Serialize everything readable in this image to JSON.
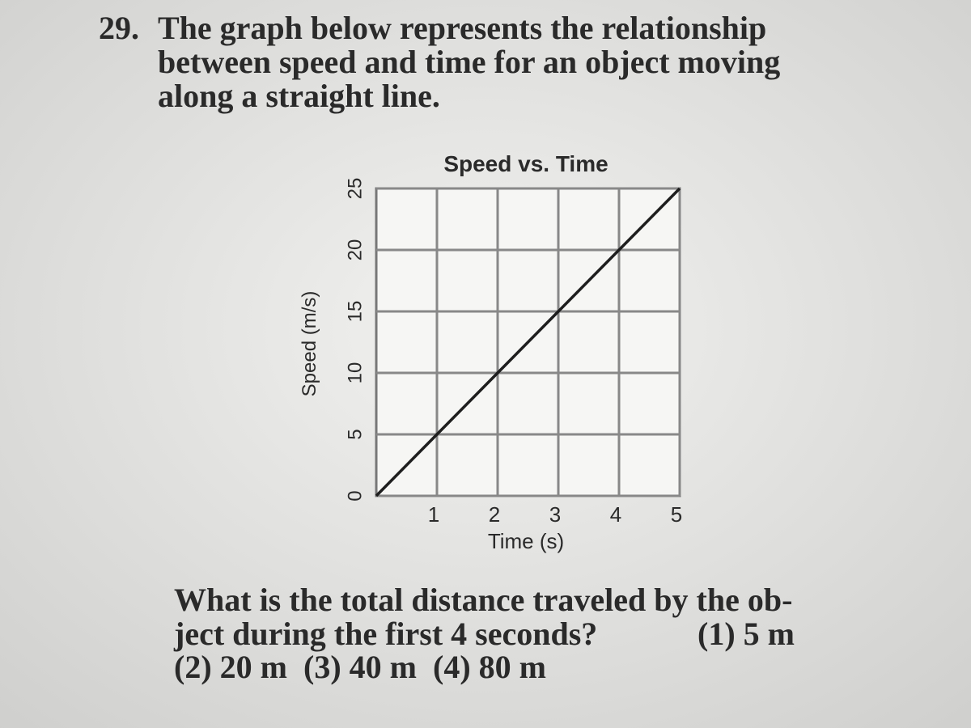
{
  "question": {
    "number": "29.",
    "lines": [
      "The graph below represents the relationship",
      "between speed and time for an object moving",
      "along a straight line."
    ]
  },
  "chart_data": {
    "type": "line",
    "title": "Speed vs. Time",
    "x_label": "Time (s)",
    "y_label": "Speed (m/s)",
    "x": [
      0,
      1,
      2,
      3,
      4,
      5
    ],
    "values": [
      0,
      5,
      10,
      15,
      20,
      25
    ],
    "color": "#1e1e1e",
    "xlim": [
      0,
      5
    ],
    "ylim": [
      0,
      25
    ],
    "xticks": [
      1,
      2,
      3,
      4,
      5
    ],
    "yticks": [
      0,
      5,
      10,
      15,
      20,
      25
    ],
    "grid": true
  },
  "prompt": {
    "lines": [
      "What is the total distance traveled by the ob-",
      "ject during the first 4 seconds?"
    ]
  },
  "choices": [
    "(1) 5 m",
    "(2) 20 m",
    "(3) 40 m",
    "(4) 80 m"
  ]
}
